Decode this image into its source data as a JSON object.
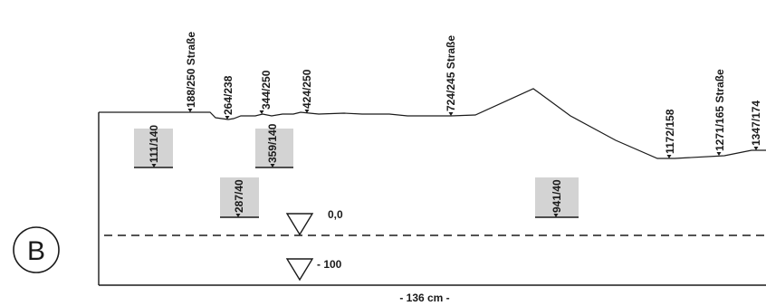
{
  "panel_label": "B",
  "scale_label": "- 136 cm -",
  "levels": [
    {
      "text": "0,0"
    },
    {
      "text": "- 100"
    }
  ],
  "surface_labels": [
    {
      "text": "188/250 Straße"
    },
    {
      "text": "264/238"
    },
    {
      "text": "344/250"
    },
    {
      "text": "424/250"
    },
    {
      "text": "724/245 Straße"
    },
    {
      "text": "1172/158"
    },
    {
      "text": "1271/165 Straße"
    },
    {
      "text": "1347/174"
    }
  ],
  "feature_labels": [
    {
      "text": "111/140"
    },
    {
      "text": "359/140"
    },
    {
      "text": "287/40"
    },
    {
      "text": "941/40"
    }
  ],
  "colors": {
    "ink": "#1a1a1a",
    "feature_fill": "#d3d3d3",
    "background": "#ffffff"
  }
}
